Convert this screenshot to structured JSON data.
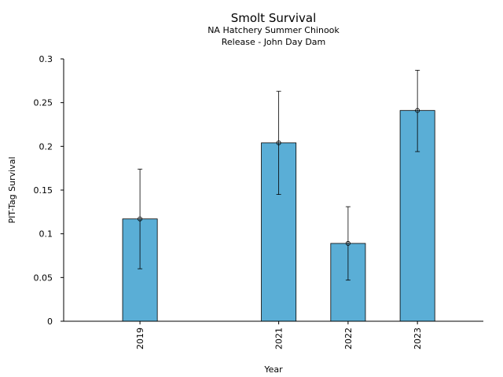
{
  "chart_data": {
    "type": "bar",
    "title": "Smolt Survival",
    "subtitle": [
      "NA Hatchery Summer Chinook",
      "Release - John Day Dam"
    ],
    "xlabel": "Year",
    "ylabel": "PIT-Tag Survival",
    "x": [
      2019,
      2021,
      2022,
      2023
    ],
    "categories": [
      "2019",
      "2021",
      "2022",
      "2023"
    ],
    "values": [
      0.117,
      0.204,
      0.089,
      0.241
    ],
    "error_lower": [
      0.06,
      0.145,
      0.047,
      0.194
    ],
    "error_upper": [
      0.174,
      0.263,
      0.131,
      0.287
    ],
    "xlim": [
      2017.9,
      2023.95
    ],
    "ylim": [
      0,
      0.3
    ],
    "yticks": [
      0,
      0.05,
      0.1,
      0.15,
      0.2,
      0.25,
      0.3
    ],
    "ytick_labels": [
      "0",
      "0.05",
      "0.1",
      "0.15",
      "0.2",
      "0.25",
      "0.3"
    ],
    "bar_color": "#5aaed6",
    "edge_color": "#000000",
    "grid": false
  }
}
